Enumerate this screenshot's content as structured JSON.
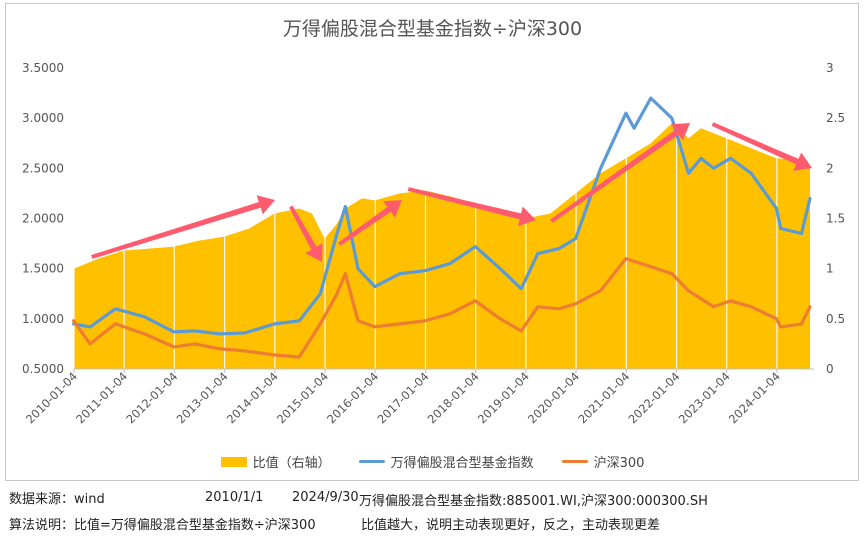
{
  "chart_data": {
    "type": "line",
    "title": "万得偏股混合型基金指数÷沪深300",
    "left_axis": {
      "ticks": [
        "0.5000",
        "1.0000",
        "1.5000",
        "2.0000",
        "2.5000",
        "3.0000",
        "3.5000"
      ],
      "ylim": [
        0.5,
        3.5
      ]
    },
    "right_axis": {
      "ticks": [
        "0",
        "0.5",
        "1",
        "1.5",
        "2",
        "2.5",
        "3"
      ],
      "ylim": [
        0,
        3
      ]
    },
    "x_tick_labels": [
      "2010-01-04",
      "2011-01-04",
      "2012-01-04",
      "2013-01-04",
      "2014-01-04",
      "2015-01-04",
      "2016-01-04",
      "2017-01-04",
      "2018-01-04",
      "2019-01-04",
      "2020-01-04",
      "2021-01-04",
      "2022-01-04",
      "2023-01-04",
      "2024-01-04"
    ],
    "x_range": [
      "2010-01-04",
      "2024-09-30"
    ],
    "grid": false,
    "legend_position": "bottom",
    "series": [
      {
        "name": "比值（右轴）",
        "kind": "area",
        "axis": "right",
        "color": "#FFC000",
        "x": [
          "2010-01",
          "2010-07",
          "2011-01",
          "2011-07",
          "2012-01",
          "2012-07",
          "2013-01",
          "2013-07",
          "2014-01",
          "2014-07",
          "2014-10",
          "2015-01",
          "2015-04",
          "2015-06",
          "2015-10",
          "2016-01",
          "2016-07",
          "2017-01",
          "2017-07",
          "2018-01",
          "2018-07",
          "2019-01",
          "2019-07",
          "2020-01",
          "2020-07",
          "2021-01",
          "2021-07",
          "2021-12",
          "2022-04",
          "2022-07",
          "2023-01",
          "2023-07",
          "2024-01",
          "2024-07",
          "2024-09"
        ],
        "values": [
          1.0,
          1.1,
          1.18,
          1.2,
          1.22,
          1.28,
          1.32,
          1.4,
          1.55,
          1.6,
          1.55,
          1.3,
          1.45,
          1.6,
          1.7,
          1.68,
          1.75,
          1.78,
          1.72,
          1.65,
          1.6,
          1.5,
          1.55,
          1.75,
          1.95,
          2.1,
          2.25,
          2.45,
          2.3,
          2.4,
          2.3,
          2.2,
          2.1,
          2.08,
          2.0
        ]
      },
      {
        "name": "万得偏股混合型基金指数",
        "kind": "line",
        "axis": "left",
        "color": "#5B9BD5",
        "x": [
          "2010-01",
          "2010-05",
          "2010-11",
          "2011-06",
          "2012-01",
          "2012-06",
          "2012-12",
          "2013-06",
          "2014-01",
          "2014-07",
          "2014-12",
          "2015-04",
          "2015-06",
          "2015-09",
          "2016-01",
          "2016-07",
          "2017-01",
          "2017-07",
          "2018-01",
          "2018-07",
          "2018-12",
          "2019-04",
          "2019-09",
          "2020-01",
          "2020-07",
          "2021-01",
          "2021-03",
          "2021-07",
          "2021-12",
          "2022-04",
          "2022-07",
          "2022-10",
          "2023-02",
          "2023-07",
          "2024-01",
          "2024-02",
          "2024-07",
          "2024-09"
        ],
        "values": [
          0.95,
          0.92,
          1.1,
          1.02,
          0.87,
          0.88,
          0.85,
          0.86,
          0.95,
          0.98,
          1.25,
          1.85,
          2.12,
          1.5,
          1.32,
          1.45,
          1.48,
          1.55,
          1.72,
          1.5,
          1.3,
          1.65,
          1.7,
          1.8,
          2.5,
          3.05,
          2.9,
          3.2,
          3.0,
          2.45,
          2.6,
          2.5,
          2.6,
          2.45,
          2.1,
          1.9,
          1.85,
          2.2
        ]
      },
      {
        "name": "沪深300",
        "kind": "line",
        "axis": "left",
        "color": "#ED7D31",
        "x": [
          "2010-01",
          "2010-05",
          "2010-11",
          "2011-06",
          "2012-01",
          "2012-06",
          "2012-12",
          "2013-06",
          "2014-01",
          "2014-07",
          "2014-12",
          "2015-04",
          "2015-06",
          "2015-09",
          "2016-01",
          "2016-07",
          "2017-01",
          "2017-07",
          "2018-01",
          "2018-07",
          "2018-12",
          "2019-04",
          "2019-09",
          "2020-01",
          "2020-07",
          "2021-01",
          "2021-07",
          "2021-12",
          "2022-04",
          "2022-10",
          "2023-02",
          "2023-07",
          "2024-01",
          "2024-02",
          "2024-07",
          "2024-09"
        ],
        "values": [
          0.98,
          0.75,
          0.95,
          0.85,
          0.72,
          0.75,
          0.7,
          0.68,
          0.64,
          0.62,
          0.95,
          1.25,
          1.45,
          0.98,
          0.92,
          0.95,
          0.98,
          1.05,
          1.18,
          1.0,
          0.88,
          1.12,
          1.1,
          1.15,
          1.28,
          1.6,
          1.52,
          1.45,
          1.28,
          1.12,
          1.18,
          1.12,
          1.0,
          0.92,
          0.95,
          1.12
        ]
      }
    ],
    "annotations": {
      "arrows_color": "#FF5B6E"
    }
  },
  "legend": [
    "比值（右轴）",
    "万得偏股混合型基金指数",
    "沪深300"
  ],
  "footer": {
    "source_label": "数据来源：wind",
    "start_date": "2010/1/1",
    "end_date": "2024/9/30",
    "codes": "万得偏股混合型基金指数:885001.WI,沪深300:000300.SH",
    "method_label": "算法说明：比值=万得偏股混合型基金指数÷沪深300",
    "method_note": "比值越大，说明主动表现更好，反之，主动表现更差"
  }
}
